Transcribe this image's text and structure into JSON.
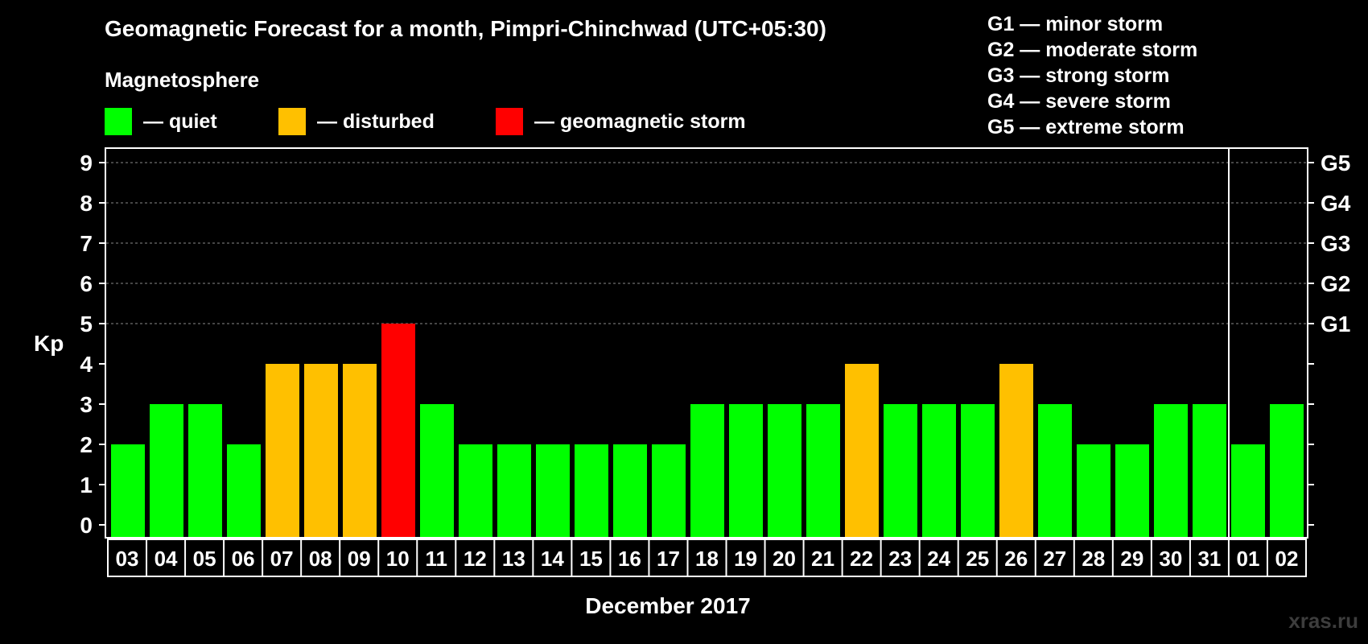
{
  "chart_data": {
    "type": "bar",
    "title": "Geomagnetic Forecast for a month, Pimpri-Chinchwad (UTC+05:30)",
    "subtitle": "Magnetosphere",
    "ylabel": "Kp",
    "xlabel": "December 2017",
    "ylim": [
      0,
      9
    ],
    "yticks": [
      "0",
      "1",
      "2",
      "3",
      "4",
      "5",
      "6",
      "7",
      "8",
      "9"
    ],
    "right_axis": [
      {
        "kp": 5,
        "label": "G1"
      },
      {
        "kp": 6,
        "label": "G2"
      },
      {
        "kp": 7,
        "label": "G3"
      },
      {
        "kp": 8,
        "label": "G4"
      },
      {
        "kp": 9,
        "label": "G5"
      }
    ],
    "categories": [
      "03",
      "04",
      "05",
      "06",
      "07",
      "08",
      "09",
      "10",
      "11",
      "12",
      "13",
      "14",
      "15",
      "16",
      "17",
      "18",
      "19",
      "20",
      "21",
      "22",
      "23",
      "24",
      "25",
      "26",
      "27",
      "28",
      "29",
      "30",
      "31",
      "01",
      "02"
    ],
    "values": [
      2,
      3,
      3,
      2,
      4,
      4,
      4,
      5,
      3,
      2,
      2,
      2,
      2,
      2,
      2,
      3,
      3,
      3,
      3,
      4,
      3,
      3,
      3,
      4,
      3,
      2,
      2,
      3,
      3,
      2,
      3
    ],
    "month_break_after": "31",
    "grid": "dashed at Kp 5-9",
    "status_colors": {
      "quiet": "#00ff00",
      "disturbed": "#ffc000",
      "storm": "#ff0000"
    },
    "legend": [
      {
        "key": "quiet",
        "label": "— quiet",
        "color": "#00ff00"
      },
      {
        "key": "disturbed",
        "label": "— disturbed",
        "color": "#ffc000"
      },
      {
        "key": "storm",
        "label": "— geomagnetic storm",
        "color": "#ff0000"
      }
    ],
    "storm_scale": [
      "G1 — minor storm",
      "G2 — moderate storm",
      "G3 — strong storm",
      "G4 — severe storm",
      "G5 — extreme storm"
    ]
  },
  "watermark": "xras.ru"
}
